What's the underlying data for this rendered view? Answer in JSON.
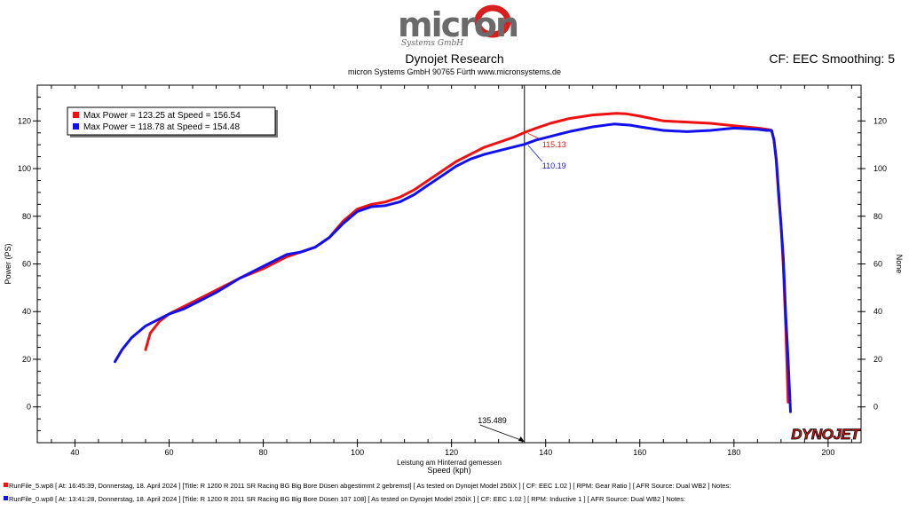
{
  "header": {
    "logo_text": "micron",
    "logo_subtext": "Systems GmbH",
    "title": "Dynojet Research",
    "subtitle": "micron Systems GmbH  90765 Fürth www.micronsystems.de",
    "cf_text": "CF: EEC Smoothing: 5"
  },
  "footer": {
    "brand": "DYNOJET",
    "runs": [
      {
        "text": "RunFile_5.wp8 [ At: 16:45:39, Donnerstag, 18. April 2024 ] [Title: R 1200 R 2011 SR Racing BG Big Bore Düsen abgestimmt 2 gebremst]  [ As tested on Dynojet Model 250iX ] [ CF: EEC 1.02 ] [ RPM: Gear Ratio ] [ AFR Source: Dual WB2 ] Notes:",
        "color": "#ee1111"
      },
      {
        "text": "RunFile_0.wp8 [ At: 13:41:28, Donnerstag, 18. April 2024 ] [Title: R 1200 R 2011 SR Racing BG Big Bore Düsen 107 108]  [ As tested on Dynojet Model 250iX ] [ CF: EEC 1.02 ] [ RPM: Inductive 1 ] [ AFR Source: Dual WB2 ] Notes:",
        "color": "#1111ee"
      }
    ]
  },
  "chart_data": {
    "type": "line",
    "xlabel": "Speed (kph)",
    "xlabel_top": "Leistung am Hinterrad gemessen",
    "ylabel": "Power (PS)",
    "ylabel_right": "None",
    "xlim": [
      32,
      207
    ],
    "ylim": [
      -15,
      135
    ],
    "xticks": [
      40,
      60,
      80,
      100,
      120,
      140,
      160,
      180,
      200
    ],
    "yticks": [
      0,
      20,
      40,
      60,
      80,
      100,
      120
    ],
    "legend_position": "top-left",
    "cursor": {
      "x": 135.489,
      "label": "135.489"
    },
    "series": [
      {
        "name": "Max Power = 123.25 at Speed = 156.54",
        "color": "#ee1111",
        "cursor_value": "115.13",
        "x": [
          55,
          56,
          58,
          60,
          63,
          66,
          70,
          75,
          80,
          85,
          88,
          91,
          94,
          97,
          100,
          103,
          106,
          109,
          112,
          115,
          118,
          121,
          124,
          127,
          130,
          133,
          135.5,
          138,
          141,
          145,
          150,
          155,
          157,
          160,
          165,
          170,
          175,
          180,
          185,
          187,
          188,
          188.5,
          189,
          189.5,
          190,
          190.5,
          191,
          191.5
        ],
        "y": [
          24,
          31,
          36,
          39,
          42,
          45,
          49,
          54,
          58,
          63,
          65,
          67,
          71,
          78,
          83,
          85,
          86,
          88,
          91,
          95,
          99,
          103,
          106,
          109,
          111,
          113,
          115.13,
          117,
          119,
          121,
          122.5,
          123.2,
          123,
          122,
          120,
          119.5,
          119,
          118,
          117,
          116.5,
          116,
          112,
          103,
          88,
          76,
          58,
          33,
          2
        ]
      },
      {
        "name": "Max Power = 118.78 at Speed = 154.48",
        "color": "#1111ee",
        "cursor_value": "110.19",
        "x": [
          48.5,
          50,
          52,
          55,
          58,
          60,
          63,
          66,
          70,
          75,
          80,
          85,
          88,
          91,
          94,
          97,
          100,
          103,
          106,
          109,
          112,
          115,
          118,
          121,
          124,
          127,
          130,
          133,
          135.5,
          138,
          141,
          145,
          150,
          154.5,
          158,
          160,
          165,
          170,
          175,
          180,
          185,
          187,
          188,
          188.5,
          189,
          189.5,
          190,
          190.5,
          191,
          191.5,
          192
        ],
        "y": [
          19,
          24,
          29,
          34,
          37,
          39,
          41,
          44,
          48,
          54,
          59,
          64,
          65,
          67,
          71,
          77,
          82,
          84,
          84.5,
          86,
          89,
          93,
          97,
          101,
          104,
          106,
          107.5,
          109,
          110.19,
          112,
          113.5,
          115.5,
          117.5,
          118.7,
          118.2,
          117.5,
          116,
          115.5,
          116,
          117,
          116.5,
          116,
          116,
          112,
          104,
          90,
          76,
          62,
          38,
          20,
          -2
        ]
      }
    ]
  }
}
